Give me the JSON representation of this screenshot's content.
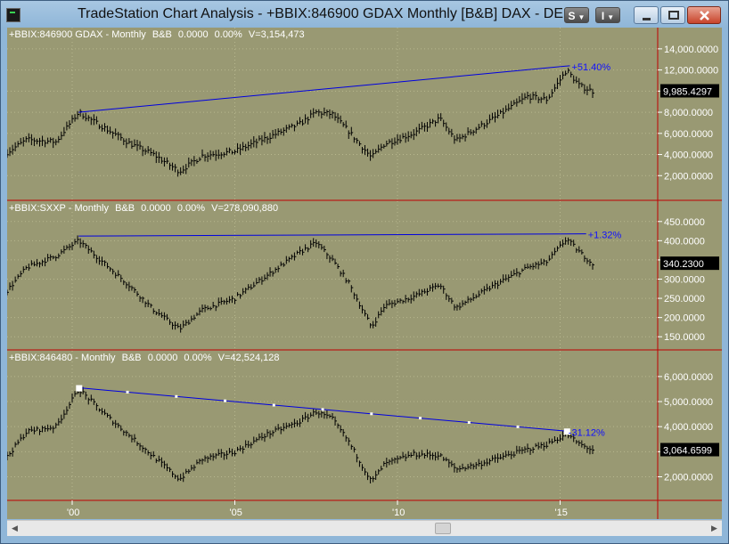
{
  "window": {
    "title": "TradeStation Chart Analysis - +BBIX:846900 GDAX Monthly [B&B] DAX - DEUTSCHE",
    "menu_s_label": "S",
    "menu_i_label": "I",
    "icons": {
      "minimize": "minimize-icon",
      "maximize": "maximize-icon",
      "close": "close-icon"
    }
  },
  "colors": {
    "background": "#999973",
    "bars": "#000000",
    "trendline": "#0000e0",
    "label": "#ffffff",
    "separator": "#c00000",
    "pct_text": "#1010ff"
  },
  "panels": [
    {
      "header": {
        "symbol": "+BBIX:846900 GDAX - Monthly",
        "style": "B&B",
        "change": "0.0000",
        "pct": "0.00%",
        "volume": "V=3,154,473"
      },
      "current_price": "9,985.4297",
      "trend_pct": "+51.40%",
      "chart_data": {
        "type": "bar",
        "interval": "monthly",
        "yticks": [
          "14,000.0000",
          "12,000.0000",
          "10,000.0000",
          "8,000.0000",
          "6,000.0000",
          "4,000.0000",
          "2,000.0000"
        ],
        "ylim": [
          0,
          15000
        ],
        "anchors": [
          [
            1998.0,
            4200
          ],
          [
            1998.6,
            5400
          ],
          [
            1999.5,
            5200
          ],
          [
            2000.2,
            8000
          ],
          [
            2001.0,
            6500
          ],
          [
            2001.8,
            5000
          ],
          [
            2002.5,
            4000
          ],
          [
            2003.3,
            2400
          ],
          [
            2004.0,
            3900
          ],
          [
            2005.0,
            4300
          ],
          [
            2006.0,
            5600
          ],
          [
            2007.0,
            6900
          ],
          [
            2007.5,
            8000
          ],
          [
            2008.0,
            7800
          ],
          [
            2008.5,
            6200
          ],
          [
            2009.2,
            3700
          ],
          [
            2009.6,
            5000
          ],
          [
            2010.5,
            6000
          ],
          [
            2011.3,
            7400
          ],
          [
            2011.8,
            5300
          ],
          [
            2012.5,
            6600
          ],
          [
            2013.0,
            7500
          ],
          [
            2014.0,
            9500
          ],
          [
            2014.6,
            9200
          ],
          [
            2015.2,
            12000
          ],
          [
            2015.6,
            10500
          ],
          [
            2016.0,
            9985
          ]
        ],
        "trendline": {
          "from": [
            2000.2,
            8000
          ],
          "to": [
            2015.3,
            12400
          ]
        }
      }
    },
    {
      "header": {
        "symbol": "+BBIX:SXXP - Monthly",
        "style": "B&B",
        "change": "0.0000",
        "pct": "0.00%",
        "volume": "V=278,090,880"
      },
      "current_price": "340.2300",
      "trend_pct": "+1.32%",
      "chart_data": {
        "type": "bar",
        "interval": "monthly",
        "yticks": [
          "450.0000",
          "400.0000",
          "350.0000",
          "300.0000",
          "250.0000",
          "200.0000",
          "150.0000"
        ],
        "ylim": [
          125,
          475
        ],
        "anchors": [
          [
            1998.0,
            270
          ],
          [
            1998.6,
            330
          ],
          [
            1999.5,
            360
          ],
          [
            2000.2,
            400
          ],
          [
            2001.0,
            340
          ],
          [
            2001.8,
            280
          ],
          [
            2002.5,
            220
          ],
          [
            2003.3,
            170
          ],
          [
            2004.0,
            220
          ],
          [
            2005.0,
            250
          ],
          [
            2006.0,
            310
          ],
          [
            2007.0,
            370
          ],
          [
            2007.5,
            395
          ],
          [
            2008.0,
            350
          ],
          [
            2008.5,
            290
          ],
          [
            2009.2,
            175
          ],
          [
            2009.6,
            230
          ],
          [
            2010.5,
            255
          ],
          [
            2011.3,
            285
          ],
          [
            2011.8,
            225
          ],
          [
            2012.5,
            260
          ],
          [
            2013.0,
            285
          ],
          [
            2014.0,
            330
          ],
          [
            2014.6,
            345
          ],
          [
            2015.2,
            405
          ],
          [
            2015.6,
            370
          ],
          [
            2016.0,
            340
          ]
        ],
        "trendline": {
          "from": [
            2000.2,
            412
          ],
          "to": [
            2015.8,
            418
          ]
        }
      }
    },
    {
      "header": {
        "symbol": "+BBIX:846480 - Monthly",
        "style": "B&B",
        "change": "0.0000",
        "pct": "0.00%",
        "volume": "V=42,524,128"
      },
      "current_price": "3,064.6599",
      "trend_pct": "-31.12%",
      "chart_data": {
        "type": "bar",
        "interval": "monthly",
        "yticks": [
          "6,000.0000",
          "5,000.0000",
          "4,000.0000",
          "3,000.0000",
          "2,000.0000"
        ],
        "ylim": [
          1200,
          6600
        ],
        "anchors": [
          [
            1998.0,
            2800
          ],
          [
            1998.6,
            3800
          ],
          [
            1999.5,
            4000
          ],
          [
            2000.2,
            5500
          ],
          [
            2001.0,
            4500
          ],
          [
            2001.8,
            3600
          ],
          [
            2002.5,
            2800
          ],
          [
            2003.3,
            1900
          ],
          [
            2004.0,
            2700
          ],
          [
            2005.0,
            3000
          ],
          [
            2006.0,
            3700
          ],
          [
            2007.0,
            4200
          ],
          [
            2007.5,
            4600
          ],
          [
            2008.0,
            4300
          ],
          [
            2008.5,
            3400
          ],
          [
            2009.2,
            1800
          ],
          [
            2009.6,
            2500
          ],
          [
            2010.5,
            2900
          ],
          [
            2011.3,
            2850
          ],
          [
            2011.8,
            2300
          ],
          [
            2012.5,
            2500
          ],
          [
            2013.0,
            2700
          ],
          [
            2014.0,
            3100
          ],
          [
            2014.6,
            3300
          ],
          [
            2015.2,
            3700
          ],
          [
            2015.6,
            3300
          ],
          [
            2016.0,
            3064
          ]
        ],
        "trendline": {
          "from": [
            2000.2,
            5550
          ],
          "to": [
            2015.2,
            3820
          ]
        }
      }
    }
  ],
  "x_axis": {
    "ticks": [
      {
        "label": "'00",
        "year": 2000.0
      },
      {
        "label": "'05",
        "year": 2005.0
      },
      {
        "label": "'10",
        "year": 2010.0
      },
      {
        "label": "'15",
        "year": 2015.0
      }
    ]
  },
  "scrollbar": {
    "left_icon": "scroll-left-icon",
    "right_icon": "scroll-right-icon"
  }
}
